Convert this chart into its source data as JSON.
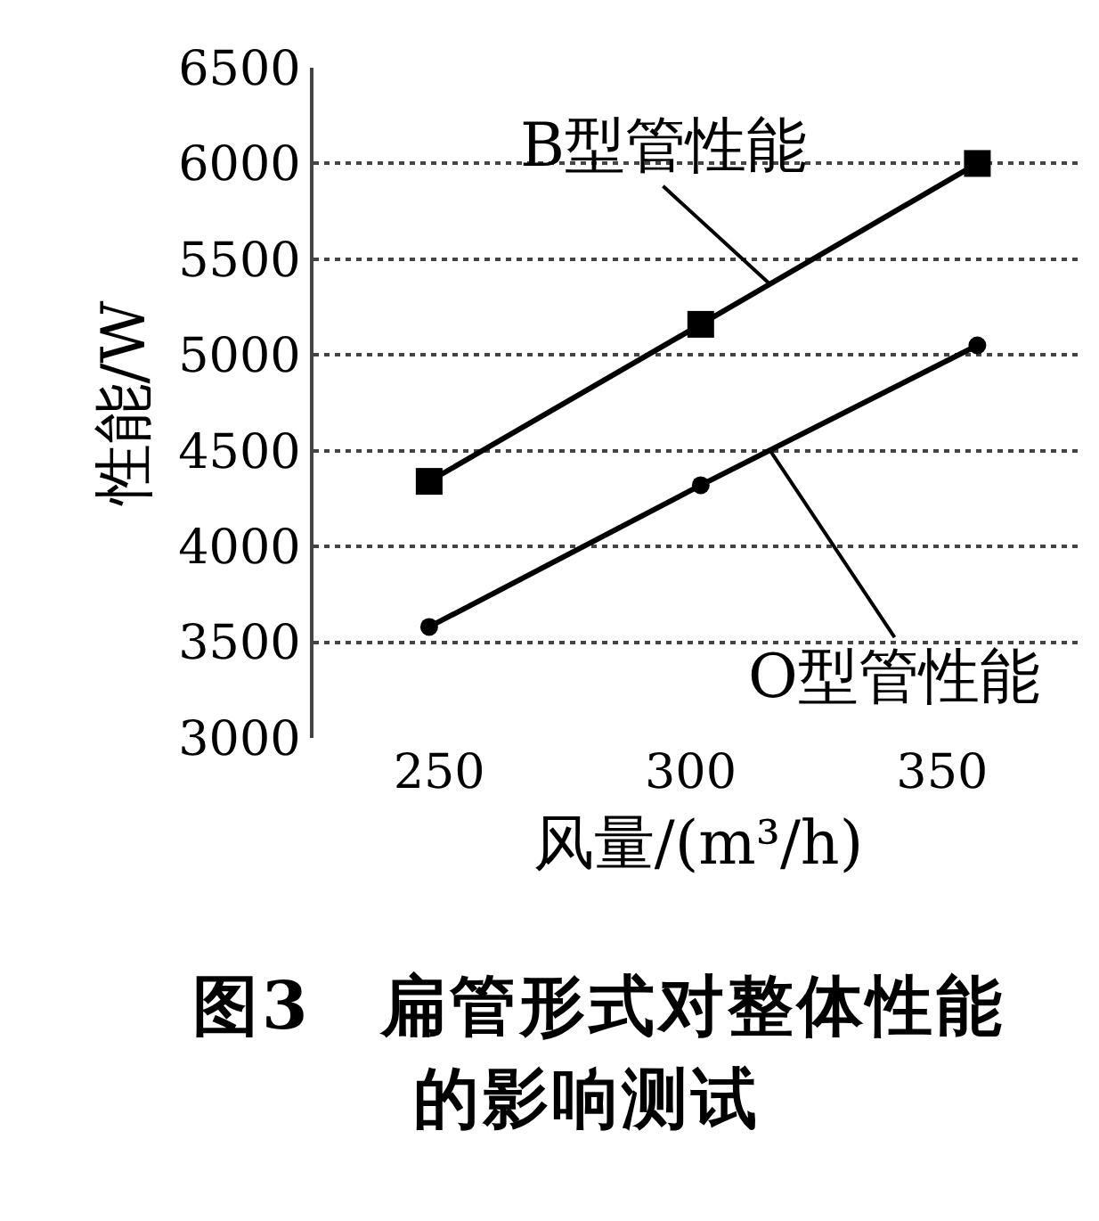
{
  "chart_data": {
    "type": "line",
    "xlabel": "风量/(m³/h)",
    "ylabel": "性能/W",
    "x": [
      248,
      302,
      357
    ],
    "series": [
      {
        "name": "B型管性能",
        "color": "#000000",
        "marker": "square",
        "values": [
          4340,
          5160,
          6000
        ]
      },
      {
        "name": "O型管性能",
        "color": "#000000",
        "marker": "circle",
        "values": [
          3580,
          4320,
          5050
        ]
      }
    ],
    "xlim": [
      225,
      378
    ],
    "xticks": [
      250,
      300,
      350
    ],
    "ylim": [
      3000,
      6500
    ],
    "yticks": [
      3000,
      3500,
      4000,
      4500,
      5000,
      5500,
      6000,
      6500
    ],
    "grid": "y",
    "legend": false,
    "line_style": "solid",
    "annotations": [
      "图3　扁管形式对整体性能的影响测试"
    ]
  }
}
